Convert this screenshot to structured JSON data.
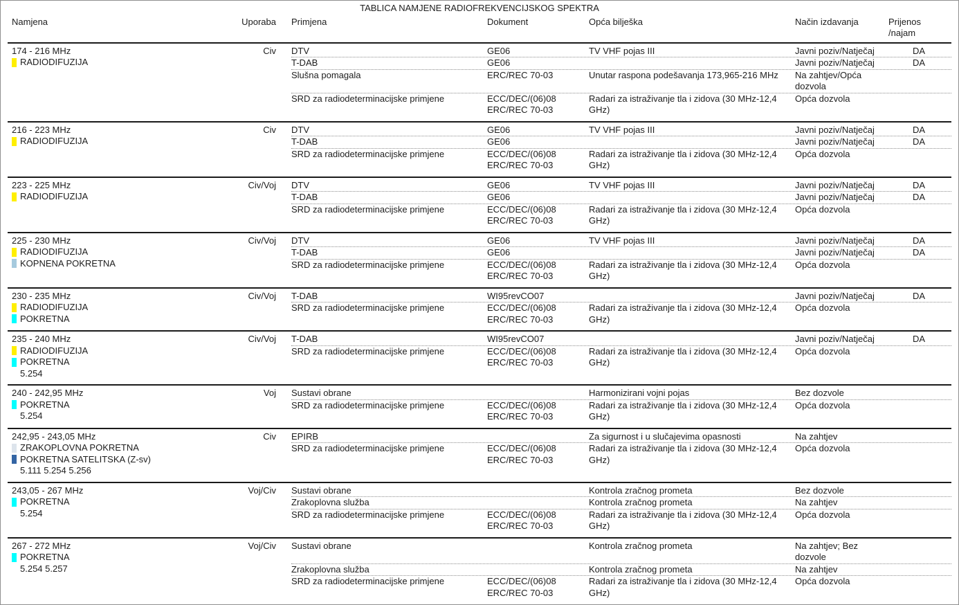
{
  "title": "TABLICA NAMJENE RADIOFREKVENCIJSKOG SPEKTRA",
  "columns": {
    "namjena": "Namjena",
    "uporaba": "Uporaba",
    "primjena": "Primjena",
    "dokument": "Dokument",
    "opca_biljeska": "Opća bilješka",
    "nacin_izdavanja": "Način izdavanja",
    "prijenos_line1": "Prijenos",
    "prijenos_line2": "/najam"
  },
  "service_colors": {
    "radiodifuzija": "#ffef00",
    "kopnena_pokretna": "#a6cade",
    "pokretna": "#00ffff",
    "zrakoplovna_pokretna": "#dde4ec",
    "pokretna_satelitska": "#3465a4"
  },
  "bands": [
    {
      "range": "174 - 216 MHz",
      "uporaba": "Civ",
      "services": [
        {
          "label": "RADIODIFUZIJA",
          "color": "#ffef00"
        }
      ],
      "footnotes": "",
      "rows": [
        {
          "primjena": "DTV",
          "dokument": [
            "GE06"
          ],
          "biljeska": "TV VHF pojas III",
          "nacin": "Javni poziv/Natječaj",
          "prijenos": "DA"
        },
        {
          "primjena": "T-DAB",
          "dokument": [
            "GE06"
          ],
          "biljeska": "",
          "nacin": "Javni poziv/Natječaj",
          "prijenos": "DA"
        },
        {
          "primjena": "Slušna pomagala",
          "dokument": [
            "ERC/REC 70-03"
          ],
          "biljeska": "Unutar raspona podešavanja 173,965-216 MHz",
          "nacin": "Na zahtjev/Opća dozvola",
          "prijenos": ""
        },
        {
          "primjena": "SRD za radiodeterminacijske primjene",
          "dokument": [
            "ECC/DEC/(06)08",
            "ERC/REC 70-03"
          ],
          "biljeska": "Radari za istraživanje tla i zidova (30 MHz-12,4 GHz)",
          "nacin": "Opća dozvola",
          "prijenos": ""
        }
      ]
    },
    {
      "range": "216 - 223 MHz",
      "uporaba": "Civ",
      "services": [
        {
          "label": "RADIODIFUZIJA",
          "color": "#ffef00"
        }
      ],
      "footnotes": "",
      "rows": [
        {
          "primjena": "DTV",
          "dokument": [
            "GE06"
          ],
          "biljeska": "TV VHF pojas III",
          "nacin": "Javni poziv/Natječaj",
          "prijenos": "DA"
        },
        {
          "primjena": "T-DAB",
          "dokument": [
            "GE06"
          ],
          "biljeska": "",
          "nacin": "Javni poziv/Natječaj",
          "prijenos": "DA"
        },
        {
          "primjena": "SRD za radiodeterminacijske primjene",
          "dokument": [
            "ECC/DEC/(06)08",
            "ERC/REC 70-03"
          ],
          "biljeska": "Radari za istraživanje tla i zidova (30 MHz-12,4 GHz)",
          "nacin": "Opća dozvola",
          "prijenos": ""
        }
      ]
    },
    {
      "range": "223 - 225 MHz",
      "uporaba": "Civ/Voj",
      "services": [
        {
          "label": "RADIODIFUZIJA",
          "color": "#ffef00"
        }
      ],
      "footnotes": "",
      "rows": [
        {
          "primjena": "DTV",
          "dokument": [
            "GE06"
          ],
          "biljeska": "TV VHF pojas III",
          "nacin": "Javni poziv/Natječaj",
          "prijenos": "DA"
        },
        {
          "primjena": "T-DAB",
          "dokument": [
            "GE06"
          ],
          "biljeska": "",
          "nacin": "Javni poziv/Natječaj",
          "prijenos": "DA"
        },
        {
          "primjena": "SRD za radiodeterminacijske primjene",
          "dokument": [
            "ECC/DEC/(06)08",
            "ERC/REC 70-03"
          ],
          "biljeska": "Radari za istraživanje tla i zidova (30 MHz-12,4 GHz)",
          "nacin": "Opća dozvola",
          "prijenos": ""
        }
      ]
    },
    {
      "range": "225 - 230 MHz",
      "uporaba": "Civ/Voj",
      "services": [
        {
          "label": "RADIODIFUZIJA",
          "color": "#ffef00"
        },
        {
          "label": "KOPNENA POKRETNA",
          "color": "#a6cade"
        }
      ],
      "footnotes": "",
      "rows": [
        {
          "primjena": "DTV",
          "dokument": [
            "GE06"
          ],
          "biljeska": "TV VHF pojas III",
          "nacin": "Javni poziv/Natječaj",
          "prijenos": "DA"
        },
        {
          "primjena": "T-DAB",
          "dokument": [
            "GE06"
          ],
          "biljeska": "",
          "nacin": "Javni poziv/Natječaj",
          "prijenos": "DA"
        },
        {
          "primjena": "SRD za radiodeterminacijske primjene",
          "dokument": [
            "ECC/DEC/(06)08",
            "ERC/REC 70-03"
          ],
          "biljeska": "Radari za istraživanje tla i zidova (30 MHz-12,4 GHz)",
          "nacin": "Opća dozvola",
          "prijenos": ""
        }
      ]
    },
    {
      "range": "230 - 235 MHz",
      "uporaba": "Civ/Voj",
      "services": [
        {
          "label": "RADIODIFUZIJA",
          "color": "#ffef00"
        },
        {
          "label": "POKRETNA",
          "color": "#00ffff"
        }
      ],
      "footnotes": "",
      "rows": [
        {
          "primjena": "T-DAB",
          "dokument": [
            "WI95revCO07"
          ],
          "biljeska": "",
          "nacin": "Javni poziv/Natječaj",
          "prijenos": "DA"
        },
        {
          "primjena": "SRD za radiodeterminacijske primjene",
          "dokument": [
            "ECC/DEC/(06)08",
            "ERC/REC 70-03"
          ],
          "biljeska": "Radari za istraživanje tla i zidova (30 MHz-12,4 GHz)",
          "nacin": "Opća dozvola",
          "prijenos": ""
        }
      ]
    },
    {
      "range": "235 - 240 MHz",
      "uporaba": "Civ/Voj",
      "services": [
        {
          "label": "RADIODIFUZIJA",
          "color": "#ffef00"
        },
        {
          "label": "POKRETNA",
          "color": "#00ffff"
        }
      ],
      "footnotes": "5.254",
      "rows": [
        {
          "primjena": "T-DAB",
          "dokument": [
            "WI95revCO07"
          ],
          "biljeska": "",
          "nacin": "Javni poziv/Natječaj",
          "prijenos": "DA"
        },
        {
          "primjena": "SRD za radiodeterminacijske primjene",
          "dokument": [
            "ECC/DEC/(06)08",
            "ERC/REC 70-03"
          ],
          "biljeska": "Radari za istraživanje tla i zidova (30 MHz-12,4 GHz)",
          "nacin": "Opća dozvola",
          "prijenos": ""
        }
      ]
    },
    {
      "range": "240 - 242,95 MHz",
      "uporaba": "Voj",
      "services": [
        {
          "label": "POKRETNA",
          "color": "#00ffff"
        }
      ],
      "footnotes": "5.254",
      "rows": [
        {
          "primjena": "Sustavi obrane",
          "dokument": [],
          "biljeska": "Harmonizirani vojni pojas",
          "nacin": "Bez dozvole",
          "prijenos": ""
        },
        {
          "primjena": "SRD za radiodeterminacijske primjene",
          "dokument": [
            "ECC/DEC/(06)08",
            "ERC/REC 70-03"
          ],
          "biljeska": "Radari za istraživanje tla i zidova (30 MHz-12,4 GHz)",
          "nacin": "Opća dozvola",
          "prijenos": ""
        }
      ]
    },
    {
      "range": "242,95 - 243,05 MHz",
      "uporaba": "Civ",
      "services": [
        {
          "label": "ZRAKOPLOVNA POKRETNA",
          "color": "#dde4ec"
        },
        {
          "label": "POKRETNA SATELITSKA (Z-sv)",
          "color": "#3465a4"
        }
      ],
      "footnotes": "5.111 5.254 5.256",
      "rows": [
        {
          "primjena": "EPIRB",
          "dokument": [],
          "biljeska": "Za sigurnost i u slučajevima opasnosti",
          "nacin": "Na zahtjev",
          "prijenos": ""
        },
        {
          "primjena": "SRD za radiodeterminacijske primjene",
          "dokument": [
            "ECC/DEC/(06)08",
            "ERC/REC 70-03"
          ],
          "biljeska": "Radari za istraživanje tla i zidova (30 MHz-12,4 GHz)",
          "nacin": "Opća dozvola",
          "prijenos": ""
        }
      ]
    },
    {
      "range": "243,05 - 267 MHz",
      "uporaba": "Voj/Civ",
      "services": [
        {
          "label": "POKRETNA",
          "color": "#00ffff"
        }
      ],
      "footnotes": "5.254",
      "rows": [
        {
          "primjena": "Sustavi obrane",
          "dokument": [],
          "biljeska": "Kontrola zračnog prometa",
          "nacin": "Bez dozvole",
          "prijenos": ""
        },
        {
          "primjena": "Zrakoplovna služba",
          "dokument": [],
          "biljeska": "Kontrola zračnog prometa",
          "nacin": "Na zahtjev",
          "prijenos": ""
        },
        {
          "primjena": "SRD za radiodeterminacijske primjene",
          "dokument": [
            "ECC/DEC/(06)08",
            "ERC/REC 70-03"
          ],
          "biljeska": "Radari za istraživanje tla i zidova (30 MHz-12,4 GHz)",
          "nacin": "Opća dozvola",
          "prijenos": ""
        }
      ]
    },
    {
      "range": "267 - 272 MHz",
      "uporaba": "Voj/Civ",
      "services": [
        {
          "label": "POKRETNA",
          "color": "#00ffff"
        }
      ],
      "footnotes": "5.254 5.257",
      "rows": [
        {
          "primjena": "Sustavi obrane",
          "dokument": [],
          "biljeska": "Kontrola zračnog prometa",
          "nacin": "Na zahtjev; Bez dozvole",
          "prijenos": ""
        },
        {
          "primjena": "Zrakoplovna služba",
          "dokument": [],
          "biljeska": "Kontrola zračnog prometa",
          "nacin": "Na zahtjev",
          "prijenos": ""
        },
        {
          "primjena": "SRD za radiodeterminacijske primjene",
          "dokument": [
            "ECC/DEC/(06)08",
            "ERC/REC 70-03"
          ],
          "biljeska": "Radari za istraživanje tla i zidova (30 MHz-12,4 GHz)",
          "nacin": "Opća dozvola",
          "prijenos": ""
        }
      ]
    }
  ]
}
